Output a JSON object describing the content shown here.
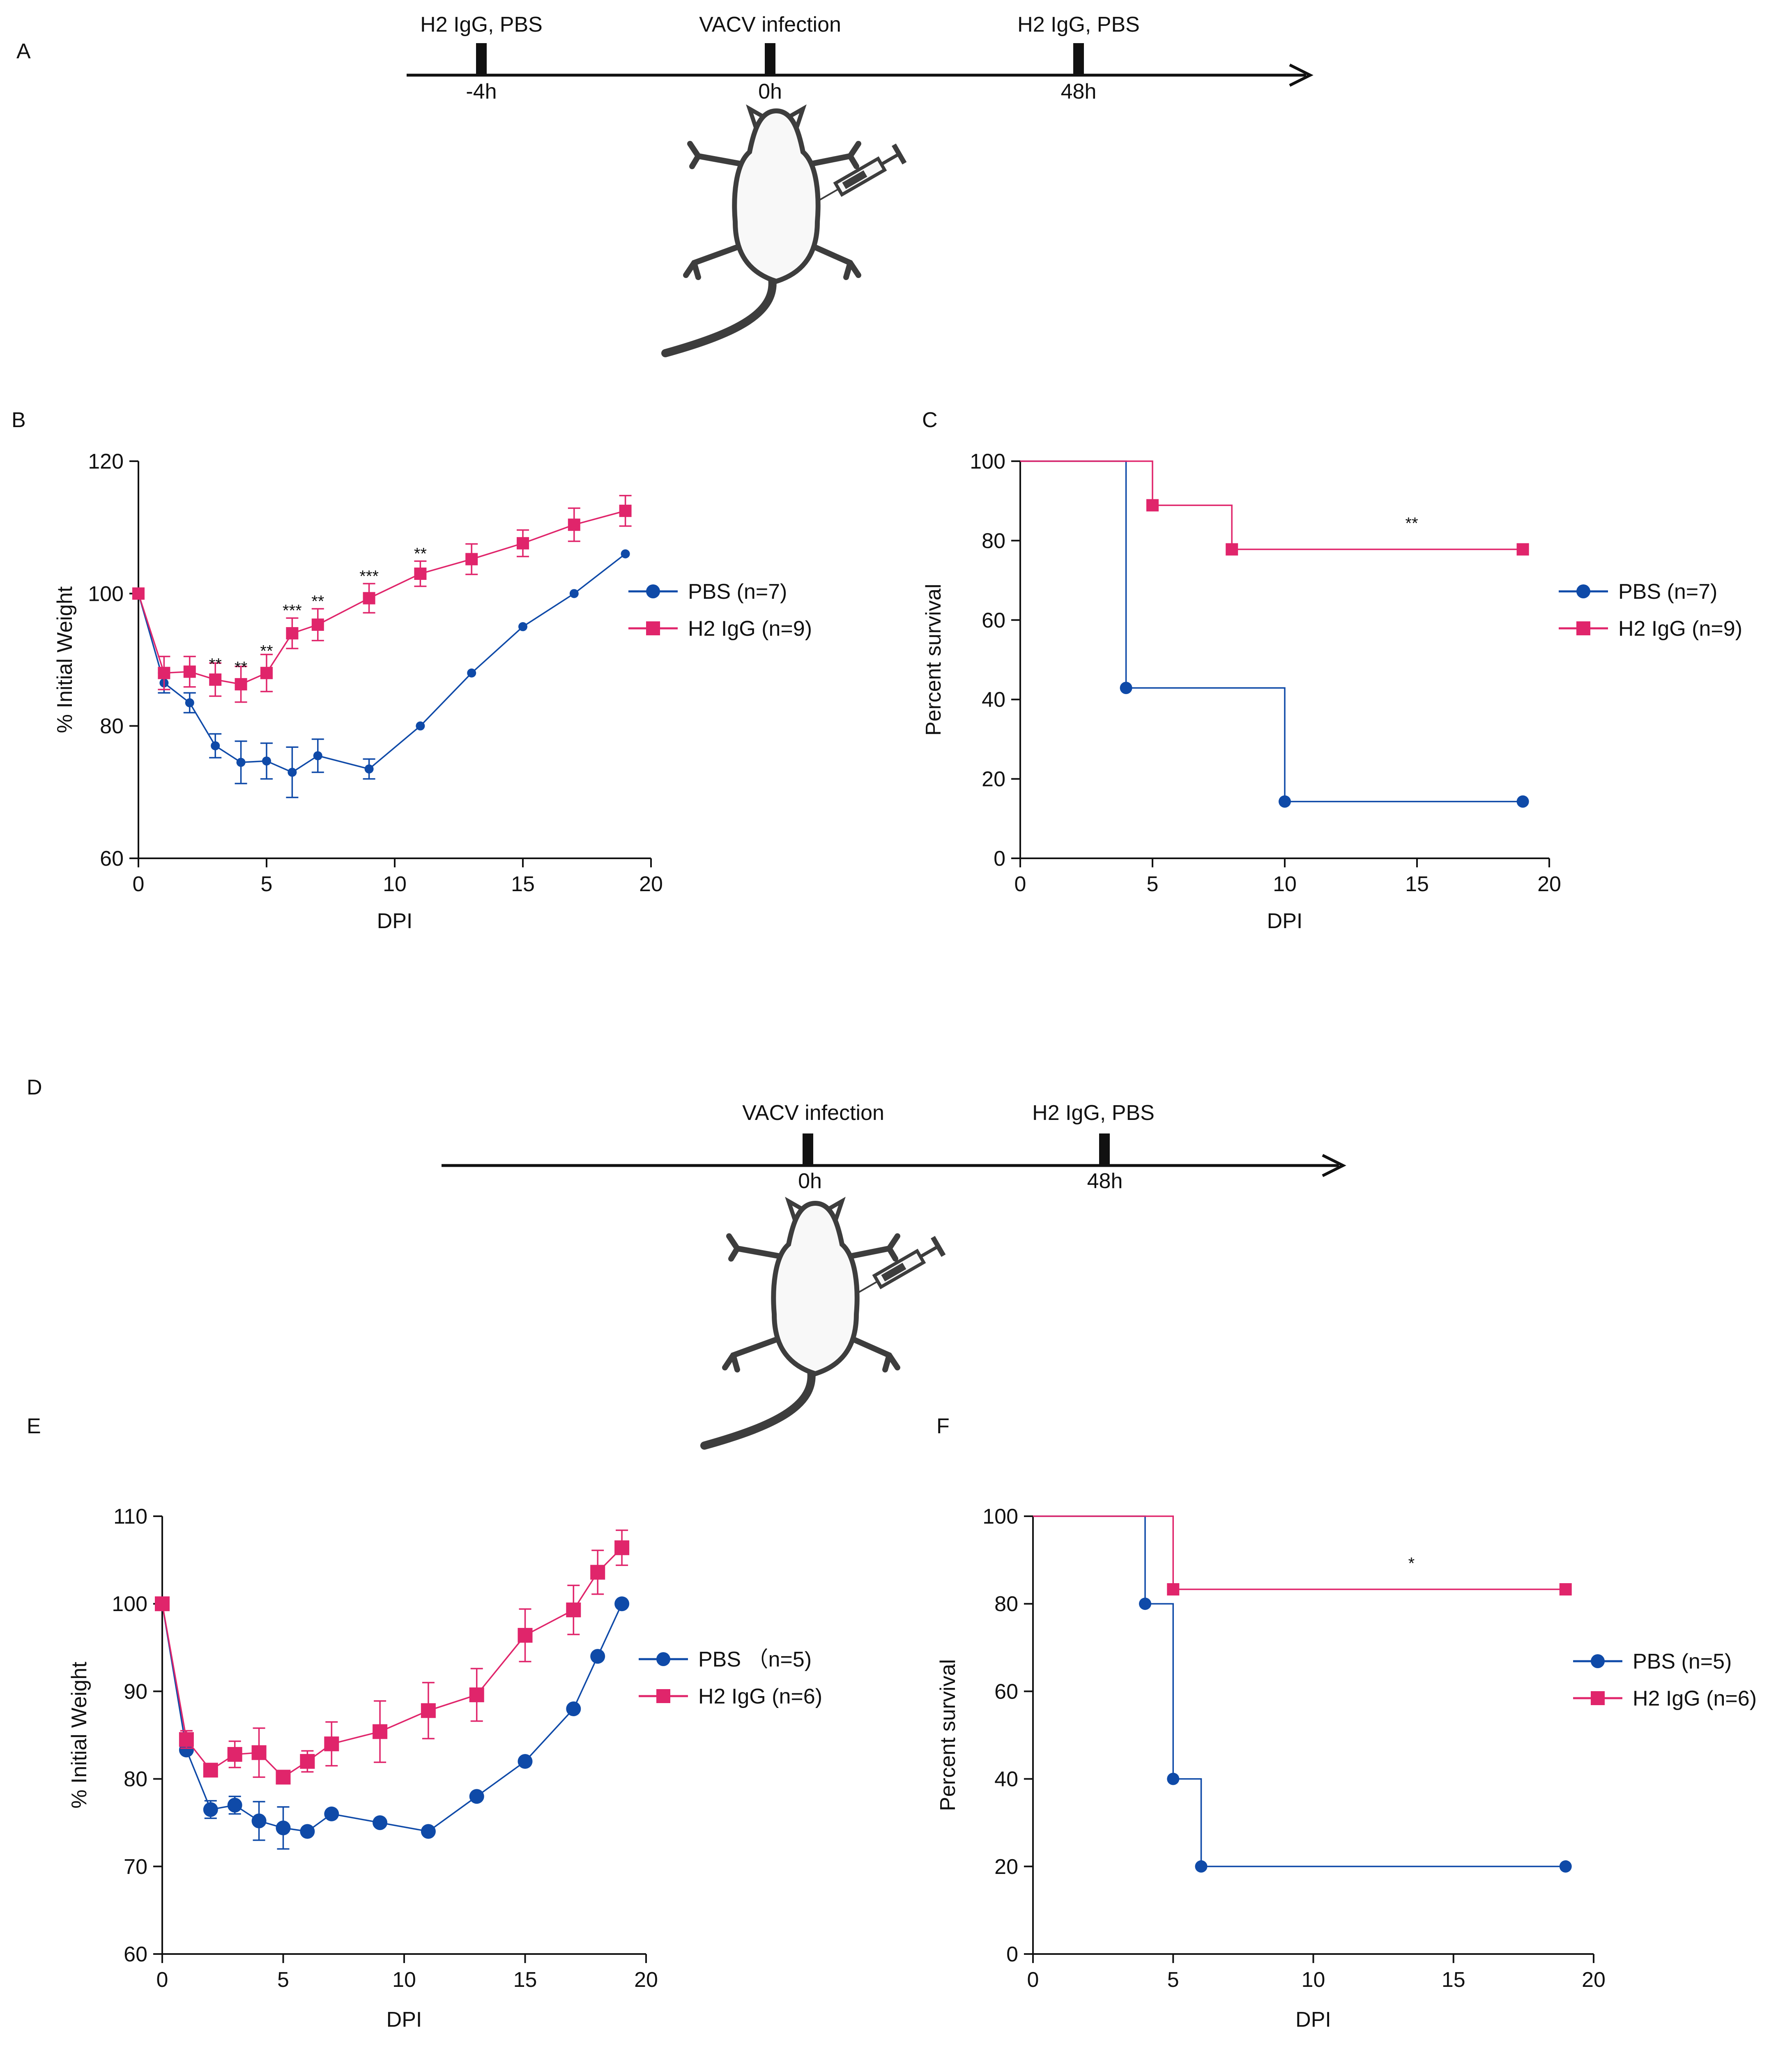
{
  "colors": {
    "pbs": "#0f4aa8",
    "h2": "#e0256b",
    "axis": "#111111"
  },
  "panels": {
    "A": {
      "label": "A",
      "events": [
        {
          "text": "H2 IgG, PBS",
          "time": "-4h"
        },
        {
          "text": "VACV infection",
          "time": "0h"
        },
        {
          "text": "H2 IgG, PBS",
          "time": "48h"
        }
      ]
    },
    "D": {
      "label": "D",
      "events": [
        {
          "text": "VACV infection",
          "time": "0h"
        },
        {
          "text": "H2 IgG, PBS",
          "time": "48h"
        }
      ]
    }
  },
  "chart_data": [
    {
      "panel": "B",
      "type": "line",
      "xlabel": "DPI",
      "ylabel": "% Initial Weight",
      "xlim": [
        0,
        20
      ],
      "ylim": [
        60,
        120
      ],
      "xticks": [
        0,
        5,
        10,
        15,
        20
      ],
      "yticks": [
        60,
        80,
        100,
        120
      ],
      "legend": "right",
      "series": [
        {
          "name": "PBS (n=7)",
          "key": "pbs",
          "marker": "circle",
          "x": [
            0,
            1,
            2,
            3,
            4,
            5,
            6,
            7,
            9,
            11,
            13,
            15,
            17,
            19
          ],
          "y": [
            100,
            86.5,
            83.5,
            77,
            74.5,
            74.7,
            73,
            75.5,
            73.5,
            80,
            88,
            95,
            100,
            106
          ],
          "err": [
            0,
            1.5,
            1.5,
            1.8,
            3.2,
            2.7,
            3.8,
            2.5,
            1.5,
            0,
            0,
            0,
            0,
            0
          ]
        },
        {
          "name": "H2 IgG (n=9)",
          "key": "h2",
          "marker": "square",
          "x": [
            0,
            1,
            2,
            3,
            4,
            5,
            6,
            7,
            9,
            11,
            13,
            15,
            17,
            19
          ],
          "y": [
            100,
            88,
            88.2,
            87,
            86.3,
            88,
            94,
            95.3,
            99.3,
            103,
            105.2,
            107.6,
            110.4,
            112.5
          ],
          "err": [
            0,
            2.5,
            2.3,
            2.5,
            2.7,
            2.8,
            2.3,
            2.4,
            2.2,
            1.9,
            2.3,
            2.0,
            2.5,
            2.3
          ]
        }
      ],
      "annotations": [
        {
          "x": 3,
          "y": 88.5,
          "text": "**"
        },
        {
          "x": 4,
          "y": 88,
          "text": "**"
        },
        {
          "x": 5,
          "y": 90.5,
          "text": "**"
        },
        {
          "x": 6,
          "y": 96.6,
          "text": "***"
        },
        {
          "x": 7,
          "y": 98,
          "text": "**"
        },
        {
          "x": 9,
          "y": 101.8,
          "text": "***"
        },
        {
          "x": 11,
          "y": 105.2,
          "text": "**"
        }
      ]
    },
    {
      "panel": "C",
      "type": "line",
      "xlabel": "DPI",
      "ylabel": "Percent survival",
      "xlim": [
        0,
        20
      ],
      "ylim": [
        0,
        100
      ],
      "xticks": [
        0,
        5,
        10,
        15,
        20
      ],
      "yticks": [
        0,
        20,
        40,
        60,
        80,
        100
      ],
      "legend": "right",
      "series": [
        {
          "name": "PBS (n=7)",
          "key": "pbs",
          "marker": "circle",
          "x": [
            0,
            4,
            10,
            19
          ],
          "y": [
            100,
            42.9,
            14.3,
            14.3
          ],
          "marks": [
            1,
            2,
            3
          ]
        },
        {
          "name": "H2 IgG (n=9)",
          "key": "h2",
          "marker": "square",
          "x": [
            0,
            5,
            8,
            19
          ],
          "y": [
            100,
            88.9,
            77.8,
            77.8
          ],
          "marks": [
            1,
            2,
            3
          ]
        }
      ],
      "annotations": [
        {
          "x": 14.8,
          "y": 83,
          "text": "**"
        }
      ]
    },
    {
      "panel": "E",
      "type": "line",
      "xlabel": "DPI",
      "ylabel": "% Initial Weight",
      "xlim": [
        0,
        20
      ],
      "ylim": [
        60,
        110
      ],
      "xticks": [
        0,
        5,
        10,
        15,
        20
      ],
      "yticks": [
        60,
        70,
        80,
        90,
        100,
        110
      ],
      "legend": "right",
      "series": [
        {
          "name": "PBS （n=5)",
          "key": "pbs",
          "marker": "circle",
          "x": [
            0,
            1,
            2,
            3,
            4,
            5,
            6,
            7,
            9,
            11,
            13,
            15,
            17,
            18,
            19
          ],
          "y": [
            100,
            83.3,
            76.5,
            77,
            75.2,
            74.4,
            74,
            76,
            75,
            74,
            78,
            82,
            88,
            94,
            100
          ],
          "err": [
            0,
            0,
            1,
            1,
            2.2,
            2.4,
            0,
            0,
            0,
            0,
            0,
            0,
            0,
            0,
            0
          ]
        },
        {
          "name": "H2 IgG (n=6)",
          "key": "h2",
          "marker": "square",
          "x": [
            0,
            1,
            2,
            3,
            4,
            5,
            6,
            7,
            9,
            11,
            13,
            15,
            17,
            18,
            19
          ],
          "y": [
            100,
            84.5,
            81,
            82.8,
            83,
            80.2,
            82,
            84,
            85.4,
            87.8,
            89.6,
            96.4,
            99.3,
            103.6,
            106.4
          ],
          "err": [
            0,
            1,
            0,
            1.5,
            2.8,
            0,
            1.2,
            2.5,
            3.5,
            3.2,
            3,
            3,
            2.8,
            2.5,
            2
          ]
        }
      ],
      "annotations": []
    },
    {
      "panel": "F",
      "type": "line",
      "xlabel": "DPI",
      "ylabel": "Percent survival",
      "xlim": [
        0,
        20
      ],
      "ylim": [
        0,
        100
      ],
      "xticks": [
        0,
        5,
        10,
        15,
        20
      ],
      "yticks": [
        0,
        20,
        40,
        60,
        80,
        100
      ],
      "legend": "right",
      "series": [
        {
          "name": "PBS (n=5)",
          "key": "pbs",
          "marker": "circle",
          "x": [
            0,
            4,
            5,
            6,
            19
          ],
          "y": [
            100,
            80,
            40,
            20,
            20
          ],
          "marks": [
            1,
            2,
            3,
            4
          ]
        },
        {
          "name": "H2 IgG (n=6)",
          "key": "h2",
          "marker": "square",
          "x": [
            0,
            5,
            19
          ],
          "y": [
            100,
            83.3,
            83.3
          ],
          "marks": [
            1,
            2
          ]
        }
      ],
      "annotations": [
        {
          "x": 13.5,
          "y": 88,
          "text": "*"
        }
      ]
    }
  ]
}
